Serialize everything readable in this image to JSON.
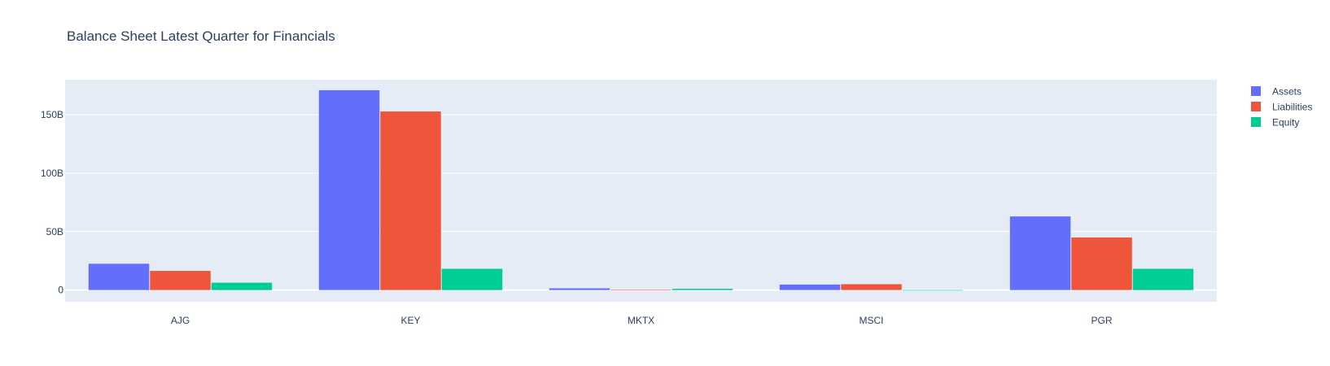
{
  "chart_data": {
    "type": "bar",
    "title": "Balance Sheet Latest Quarter for Financials",
    "xlabel": "",
    "ylabel": "",
    "categories": [
      "AJG",
      "KEY",
      "MKTX",
      "MSCI",
      "PGR"
    ],
    "series": [
      {
        "name": "Assets",
        "color": "#636efa",
        "values": [
          22.5,
          171.0,
          1.5,
          4.7,
          63.0
        ]
      },
      {
        "name": "Liabilities",
        "color": "#ef553b",
        "values": [
          16.4,
          152.8,
          0.4,
          5.0,
          45.0
        ]
      },
      {
        "name": "Equity",
        "color": "#00cc96",
        "values": [
          6.3,
          18.2,
          1.1,
          -0.4,
          18.2
        ]
      }
    ],
    "ylim": [
      -10,
      180
    ],
    "yticks": [
      0,
      50,
      100,
      150
    ],
    "ytick_labels": [
      "0",
      "50B",
      "100B",
      "150B"
    ],
    "grid": true,
    "legend_position": "top-right"
  },
  "colors": {
    "plot_background": "#e5ecf6",
    "grid": "#ffffff",
    "text": "#2a3f5f"
  }
}
